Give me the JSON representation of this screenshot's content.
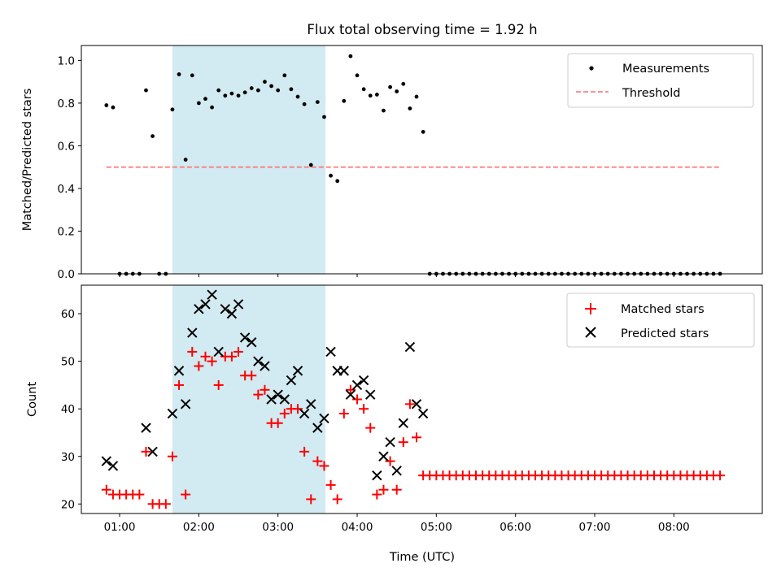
{
  "title": "Flux total observing time = 1.92 h",
  "colors": {
    "highlight": "#add8e6",
    "measurement": "#000000",
    "threshold": "#ff6f6f",
    "matched": "#ff0000",
    "predicted": "#000000"
  },
  "chart_data": [
    {
      "type": "scatter",
      "ylabel": "Matched/Predicted stars",
      "xlim": [
        "00:31",
        "09:07"
      ],
      "ylim": [
        0,
        1.07
      ],
      "y_ticks": [
        "0.0",
        "0.2",
        "0.4",
        "0.6",
        "0.8",
        "1.0"
      ],
      "legend": {
        "placement": "upper right",
        "entries": [
          "Measurements",
          "Threshold"
        ]
      },
      "highlight_span": {
        "start": "01:40",
        "end": "03:36"
      },
      "threshold": {
        "y": 0.5,
        "x_start": "00:50",
        "x_end": "08:35"
      },
      "series": [
        {
          "name": "Measurements",
          "marker": "dot",
          "points": [
            [
              "00:50",
              0.79
            ],
            [
              "00:55",
              0.78
            ],
            [
              "01:00",
              0.0
            ],
            [
              "01:05",
              0.0
            ],
            [
              "01:10",
              0.0
            ],
            [
              "01:15",
              0.0
            ],
            [
              "01:20",
              0.86
            ],
            [
              "01:25",
              0.645
            ],
            [
              "01:30",
              0.0
            ],
            [
              "01:35",
              0.0
            ],
            [
              "01:40",
              0.77
            ],
            [
              "01:45",
              0.935
            ],
            [
              "01:50",
              0.535
            ],
            [
              "01:55",
              0.93
            ],
            [
              "02:00",
              0.8
            ],
            [
              "02:05",
              0.82
            ],
            [
              "02:10",
              0.78
            ],
            [
              "02:15",
              0.86
            ],
            [
              "02:20",
              0.835
            ],
            [
              "02:25",
              0.845
            ],
            [
              "02:30",
              0.835
            ],
            [
              "02:35",
              0.85
            ],
            [
              "02:40",
              0.87
            ],
            [
              "02:45",
              0.86
            ],
            [
              "02:50",
              0.9
            ],
            [
              "02:55",
              0.88
            ],
            [
              "03:00",
              0.86
            ],
            [
              "03:05",
              0.93
            ],
            [
              "03:10",
              0.865
            ],
            [
              "03:15",
              0.83
            ],
            [
              "03:20",
              0.795
            ],
            [
              "03:25",
              0.51
            ],
            [
              "03:30",
              0.805
            ],
            [
              "03:35",
              0.735
            ],
            [
              "03:40",
              0.46
            ],
            [
              "03:45",
              0.435
            ],
            [
              "03:50",
              0.81
            ],
            [
              "03:55",
              1.02
            ],
            [
              "04:00",
              0.93
            ],
            [
              "04:05",
              0.865
            ],
            [
              "04:10",
              0.835
            ],
            [
              "04:15",
              0.84
            ],
            [
              "04:20",
              0.765
            ],
            [
              "04:25",
              0.875
            ],
            [
              "04:30",
              0.855
            ],
            [
              "04:35",
              0.89
            ],
            [
              "04:40",
              0.775
            ],
            [
              "04:45",
              0.83
            ],
            [
              "04:50",
              0.665
            ],
            [
              "04:55",
              0.0
            ],
            [
              "05:00",
              0.0
            ],
            [
              "05:05",
              0.0
            ],
            [
              "05:10",
              0.0
            ],
            [
              "05:15",
              0.0
            ],
            [
              "05:20",
              0.0
            ],
            [
              "05:25",
              0.0
            ],
            [
              "05:30",
              0.0
            ],
            [
              "05:35",
              0.0
            ],
            [
              "05:40",
              0.0
            ],
            [
              "05:45",
              0.0
            ],
            [
              "05:50",
              0.0
            ],
            [
              "05:55",
              0.0
            ],
            [
              "06:00",
              0.0
            ],
            [
              "06:05",
              0.0
            ],
            [
              "06:10",
              0.0
            ],
            [
              "06:15",
              0.0
            ],
            [
              "06:20",
              0.0
            ],
            [
              "06:25",
              0.0
            ],
            [
              "06:30",
              0.0
            ],
            [
              "06:35",
              0.0
            ],
            [
              "06:40",
              0.0
            ],
            [
              "06:45",
              0.0
            ],
            [
              "06:50",
              0.0
            ],
            [
              "06:55",
              0.0
            ],
            [
              "07:00",
              0.0
            ],
            [
              "07:05",
              0.0
            ],
            [
              "07:10",
              0.0
            ],
            [
              "07:15",
              0.0
            ],
            [
              "07:20",
              0.0
            ],
            [
              "07:25",
              0.0
            ],
            [
              "07:30",
              0.0
            ],
            [
              "07:35",
              0.0
            ],
            [
              "07:40",
              0.0
            ],
            [
              "07:45",
              0.0
            ],
            [
              "07:50",
              0.0
            ],
            [
              "07:55",
              0.0
            ],
            [
              "08:00",
              0.0
            ],
            [
              "08:05",
              0.0
            ],
            [
              "08:10",
              0.0
            ],
            [
              "08:15",
              0.0
            ],
            [
              "08:20",
              0.0
            ],
            [
              "08:25",
              0.0
            ],
            [
              "08:30",
              0.0
            ],
            [
              "08:35",
              0.0
            ]
          ]
        }
      ]
    },
    {
      "type": "scatter",
      "xlabel": "Time (UTC)",
      "ylabel": "Count",
      "xlim": [
        "00:31",
        "09:07"
      ],
      "ylim": [
        18,
        66
      ],
      "x_ticks": [
        "01:00",
        "02:00",
        "03:00",
        "04:00",
        "05:00",
        "06:00",
        "07:00",
        "08:00"
      ],
      "y_ticks": [
        "20",
        "30",
        "40",
        "50",
        "60"
      ],
      "legend": {
        "placement": "upper right",
        "entries": [
          "Matched stars",
          "Predicted stars"
        ]
      },
      "highlight_span": {
        "start": "01:40",
        "end": "03:36"
      },
      "series": [
        {
          "name": "Matched stars",
          "marker": "plus",
          "points": [
            [
              "00:50",
              23
            ],
            [
              "00:55",
              22
            ],
            [
              "01:00",
              22
            ],
            [
              "01:05",
              22
            ],
            [
              "01:10",
              22
            ],
            [
              "01:15",
              22
            ],
            [
              "01:20",
              31
            ],
            [
              "01:25",
              20
            ],
            [
              "01:30",
              20
            ],
            [
              "01:35",
              20
            ],
            [
              "01:40",
              30
            ],
            [
              "01:45",
              45
            ],
            [
              "01:50",
              22
            ],
            [
              "01:55",
              52
            ],
            [
              "02:00",
              49
            ],
            [
              "02:05",
              51
            ],
            [
              "02:10",
              50
            ],
            [
              "02:15",
              45
            ],
            [
              "02:20",
              51
            ],
            [
              "02:25",
              51
            ],
            [
              "02:30",
              52
            ],
            [
              "02:35",
              47
            ],
            [
              "02:40",
              47
            ],
            [
              "02:45",
              43
            ],
            [
              "02:50",
              44
            ],
            [
              "02:55",
              37
            ],
            [
              "03:00",
              37
            ],
            [
              "03:05",
              39
            ],
            [
              "03:10",
              40
            ],
            [
              "03:15",
              40
            ],
            [
              "03:20",
              31
            ],
            [
              "03:25",
              21
            ],
            [
              "03:30",
              29
            ],
            [
              "03:35",
              28
            ],
            [
              "03:40",
              24
            ],
            [
              "03:45",
              21
            ],
            [
              "03:50",
              39
            ],
            [
              "03:55",
              44
            ],
            [
              "04:00",
              42
            ],
            [
              "04:05",
              40
            ],
            [
              "04:10",
              36
            ],
            [
              "04:15",
              22
            ],
            [
              "04:20",
              23
            ],
            [
              "04:25",
              29
            ],
            [
              "04:30",
              23
            ],
            [
              "04:35",
              33
            ],
            [
              "04:40",
              41
            ],
            [
              "04:45",
              34
            ],
            [
              "04:50",
              26
            ],
            [
              "04:55",
              26
            ],
            [
              "05:00",
              26
            ],
            [
              "05:05",
              26
            ],
            [
              "05:10",
              26
            ],
            [
              "05:15",
              26
            ],
            [
              "05:20",
              26
            ],
            [
              "05:25",
              26
            ],
            [
              "05:30",
              26
            ],
            [
              "05:35",
              26
            ],
            [
              "05:40",
              26
            ],
            [
              "05:45",
              26
            ],
            [
              "05:50",
              26
            ],
            [
              "05:55",
              26
            ],
            [
              "06:00",
              26
            ],
            [
              "06:05",
              26
            ],
            [
              "06:10",
              26
            ],
            [
              "06:15",
              26
            ],
            [
              "06:20",
              26
            ],
            [
              "06:25",
              26
            ],
            [
              "06:30",
              26
            ],
            [
              "06:35",
              26
            ],
            [
              "06:40",
              26
            ],
            [
              "06:45",
              26
            ],
            [
              "06:50",
              26
            ],
            [
              "06:55",
              26
            ],
            [
              "07:00",
              26
            ],
            [
              "07:05",
              26
            ],
            [
              "07:10",
              26
            ],
            [
              "07:15",
              26
            ],
            [
              "07:20",
              26
            ],
            [
              "07:25",
              26
            ],
            [
              "07:30",
              26
            ],
            [
              "07:35",
              26
            ],
            [
              "07:40",
              26
            ],
            [
              "07:45",
              26
            ],
            [
              "07:50",
              26
            ],
            [
              "07:55",
              26
            ],
            [
              "08:00",
              26
            ],
            [
              "08:05",
              26
            ],
            [
              "08:10",
              26
            ],
            [
              "08:15",
              26
            ],
            [
              "08:20",
              26
            ],
            [
              "08:25",
              26
            ],
            [
              "08:30",
              26
            ],
            [
              "08:35",
              26
            ]
          ]
        },
        {
          "name": "Predicted stars",
          "marker": "x",
          "points": [
            [
              "00:50",
              29
            ],
            [
              "00:55",
              28
            ],
            [
              "01:20",
              36
            ],
            [
              "01:25",
              31
            ],
            [
              "01:40",
              39
            ],
            [
              "01:45",
              48
            ],
            [
              "01:50",
              41
            ],
            [
              "01:55",
              56
            ],
            [
              "02:00",
              61
            ],
            [
              "02:05",
              62
            ],
            [
              "02:10",
              64
            ],
            [
              "02:15",
              52
            ],
            [
              "02:20",
              61
            ],
            [
              "02:25",
              60
            ],
            [
              "02:30",
              62
            ],
            [
              "02:35",
              55
            ],
            [
              "02:40",
              54
            ],
            [
              "02:45",
              50
            ],
            [
              "02:50",
              49
            ],
            [
              "02:55",
              42
            ],
            [
              "03:00",
              43
            ],
            [
              "03:05",
              42
            ],
            [
              "03:10",
              46
            ],
            [
              "03:15",
              48
            ],
            [
              "03:20",
              39
            ],
            [
              "03:25",
              41
            ],
            [
              "03:30",
              36
            ],
            [
              "03:35",
              38
            ],
            [
              "03:40",
              52
            ],
            [
              "03:45",
              48
            ],
            [
              "03:50",
              48
            ],
            [
              "03:55",
              43
            ],
            [
              "04:00",
              45
            ],
            [
              "04:05",
              46
            ],
            [
              "04:10",
              43
            ],
            [
              "04:15",
              26
            ],
            [
              "04:20",
              30
            ],
            [
              "04:25",
              33
            ],
            [
              "04:30",
              27
            ],
            [
              "04:35",
              37
            ],
            [
              "04:40",
              53
            ],
            [
              "04:45",
              41
            ],
            [
              "04:50",
              39
            ]
          ]
        }
      ]
    }
  ]
}
